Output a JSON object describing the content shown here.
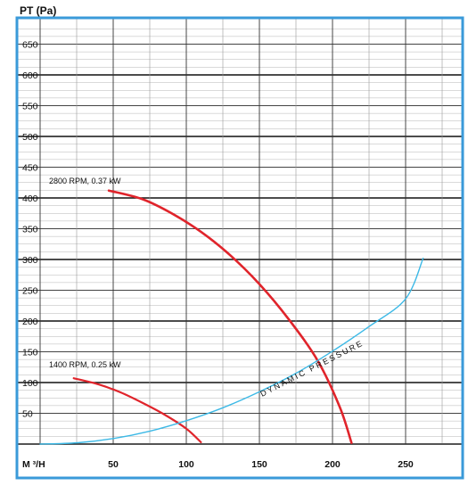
{
  "chart_data": {
    "type": "line",
    "ylabel": "PT (Pa)",
    "xlabel": "M ³/H",
    "xlim": [
      0,
      290
    ],
    "ylim": [
      0,
      690
    ],
    "y_ticks": [
      50,
      100,
      150,
      200,
      250,
      300,
      350,
      400,
      450,
      500,
      550,
      600,
      650
    ],
    "x_ticks": [
      50,
      100,
      150,
      200,
      250
    ],
    "grid": true,
    "colors": {
      "frame": "#3a9ad9",
      "fan_curve": "#e0242b",
      "dynamic_pressure": "#3cb9e6",
      "grid": "#222222"
    },
    "series": [
      {
        "name": "2800  RPM, 0.37 kW",
        "color": "#e0242b",
        "points": [
          [
            47,
            412
          ],
          [
            70,
            398
          ],
          [
            90,
            375
          ],
          [
            110,
            345
          ],
          [
            130,
            307
          ],
          [
            150,
            260
          ],
          [
            170,
            203
          ],
          [
            190,
            135
          ],
          [
            205,
            60
          ],
          [
            213,
            2
          ]
        ]
      },
      {
        "name": "1400 RPM, 0.25 kW",
        "color": "#e0242b",
        "points": [
          [
            23,
            107
          ],
          [
            40,
            97
          ],
          [
            55,
            84
          ],
          [
            70,
            67
          ],
          [
            85,
            48
          ],
          [
            100,
            25
          ],
          [
            110,
            3
          ]
        ]
      },
      {
        "name": "DYNAMIC PRESSURE",
        "color": "#3cb9e6",
        "points": [
          [
            0,
            0
          ],
          [
            25,
            2
          ],
          [
            50,
            9
          ],
          [
            75,
            21
          ],
          [
            100,
            38
          ],
          [
            125,
            59
          ],
          [
            150,
            85
          ],
          [
            175,
            115
          ],
          [
            200,
            151
          ],
          [
            225,
            191
          ],
          [
            250,
            236
          ],
          [
            262,
            302
          ]
        ]
      }
    ]
  }
}
